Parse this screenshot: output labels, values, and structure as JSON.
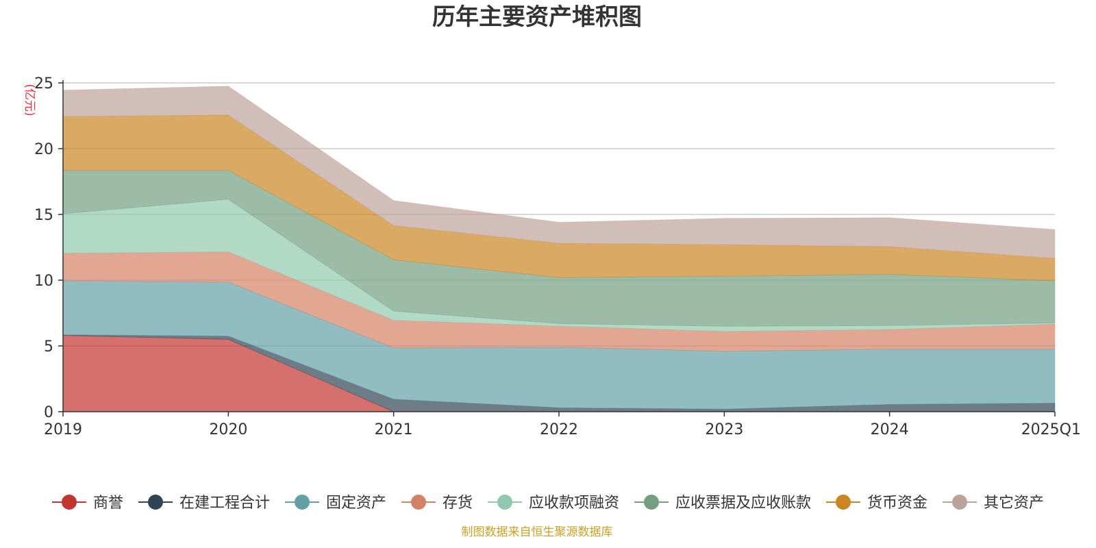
{
  "chart_data": {
    "type": "area",
    "stacked": true,
    "title": "历年主要资产堆积图",
    "unit_label": "(亿元)",
    "source_note": "制图数据来自恒生聚源数据库",
    "categories": [
      "2019",
      "2020",
      "2021",
      "2022",
      "2023",
      "2024",
      "2025Q1"
    ],
    "ylim": [
      0,
      25
    ],
    "yticks": [
      0,
      5,
      10,
      15,
      20,
      25
    ],
    "grid": true,
    "legend_position": "bottom",
    "series": [
      {
        "name": "商誉",
        "color": "#c23531",
        "values": [
          5.8,
          5.5,
          0,
          0,
          0,
          0,
          0
        ]
      },
      {
        "name": "在建工程合计",
        "color": "#2f4554",
        "values": [
          0.05,
          0.25,
          0.95,
          0.3,
          0.2,
          0.55,
          0.65
        ]
      },
      {
        "name": "固定资产",
        "color": "#61a0a8",
        "values": [
          4.1,
          4.1,
          3.9,
          4.6,
          4.4,
          4.2,
          4.1
        ]
      },
      {
        "name": "存货",
        "color": "#d48265",
        "values": [
          2.1,
          2.3,
          2.1,
          1.6,
          1.5,
          1.5,
          1.9
        ]
      },
      {
        "name": "应收款项融资",
        "color": "#91c7ae",
        "values": [
          3.0,
          4.0,
          0.7,
          0.2,
          0.4,
          0.3,
          0.1
        ]
      },
      {
        "name": "应收票据及应收账款",
        "color": "#749f83",
        "values": [
          3.3,
          2.2,
          3.9,
          3.5,
          3.8,
          3.9,
          3.2
        ]
      },
      {
        "name": "货币资金",
        "color": "#ca8622",
        "values": [
          4.1,
          4.2,
          2.6,
          2.6,
          2.4,
          2.1,
          1.7
        ]
      },
      {
        "name": "其它资产",
        "color": "#bda29a",
        "values": [
          2.0,
          2.2,
          1.9,
          1.6,
          2.0,
          2.2,
          2.2
        ]
      }
    ]
  }
}
